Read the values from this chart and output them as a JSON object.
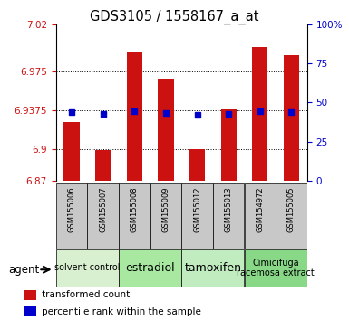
{
  "title": "GDS3105 / 1558167_a_at",
  "samples": [
    "GSM155006",
    "GSM155007",
    "GSM155008",
    "GSM155009",
    "GSM155012",
    "GSM155013",
    "GSM154972",
    "GSM155005"
  ],
  "bar_tops": [
    6.926,
    6.899,
    6.993,
    6.968,
    6.9,
    6.938,
    6.998,
    6.99
  ],
  "bar_bottom": 6.87,
  "percentile_y": [
    6.936,
    6.934,
    6.937,
    6.935,
    6.933,
    6.934,
    6.937,
    6.936
  ],
  "bar_color": "#cc1111",
  "dot_color": "#0000cc",
  "ylim_left": [
    6.87,
    7.02
  ],
  "ylim_right": [
    0,
    100
  ],
  "yticks_left": [
    6.87,
    6.9,
    6.9375,
    6.975,
    7.02
  ],
  "yticks_right": [
    0,
    25,
    50,
    75,
    100
  ],
  "ytick_labels_left": [
    "6.87",
    "6.9",
    "6.9375",
    "6.975",
    "7.02"
  ],
  "ytick_labels_right": [
    "0",
    "25",
    "50",
    "75",
    "100%"
  ],
  "groups": [
    {
      "label": "solvent control",
      "start": 0,
      "end": 2,
      "color": "#d8f0d0",
      "fontsize": 7
    },
    {
      "label": "estradiol",
      "start": 2,
      "end": 4,
      "color": "#a8e8a0",
      "fontsize": 9
    },
    {
      "label": "tamoxifen",
      "start": 4,
      "end": 6,
      "color": "#c0ecc0",
      "fontsize": 9
    },
    {
      "label": "Cimicifuga\nracemosa extract",
      "start": 6,
      "end": 8,
      "color": "#88d888",
      "fontsize": 7
    }
  ],
  "agent_label": "agent",
  "legend_items": [
    {
      "color": "#cc1111",
      "label": "transformed count"
    },
    {
      "color": "#0000cc",
      "label": "percentile rank within the sample"
    }
  ],
  "bar_width": 0.5,
  "sample_box_color": "#c8c8c8"
}
